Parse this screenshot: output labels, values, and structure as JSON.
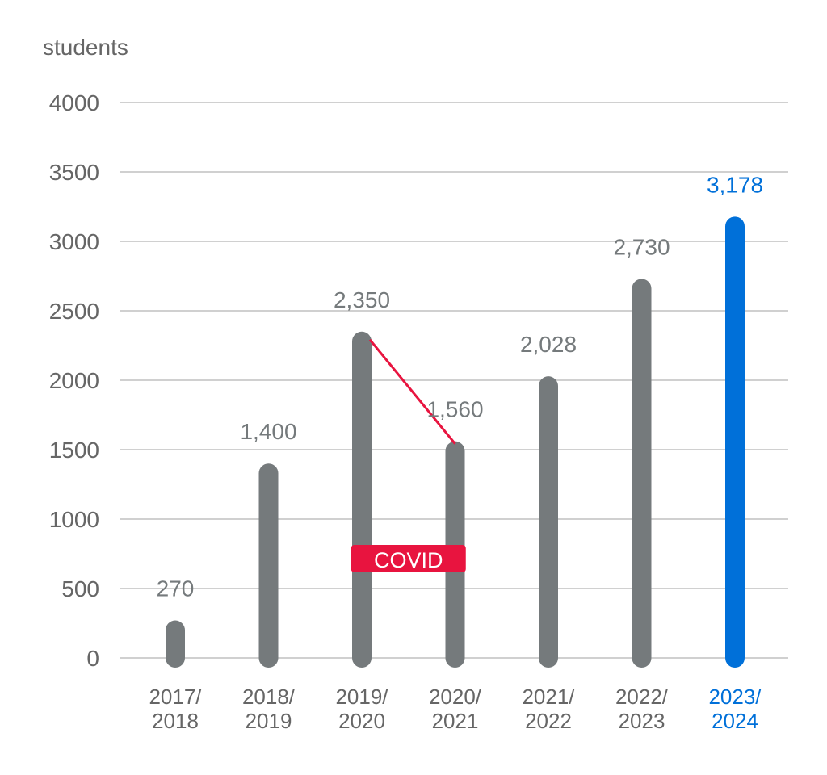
{
  "chart_data": {
    "type": "bar",
    "ylabel": "students",
    "ylim": [
      0,
      4000
    ],
    "yticks": [
      0,
      500,
      1000,
      1500,
      2000,
      2500,
      3000,
      3500,
      4000
    ],
    "ytick_labels": [
      "0",
      "500",
      "1000",
      "1500",
      "2000",
      "2500",
      "3000",
      "3500",
      "4000"
    ],
    "categories": [
      [
        "2017/",
        "2018"
      ],
      [
        "2018/",
        "2019"
      ],
      [
        "2019/",
        "2020"
      ],
      [
        "2020/",
        "2021"
      ],
      [
        "2021/",
        "2022"
      ],
      [
        "2022/",
        "2023"
      ],
      [
        "2023/",
        "2024"
      ]
    ],
    "values": [
      270,
      1400,
      2350,
      1560,
      2028,
      2730,
      3178
    ],
    "value_labels": [
      "270",
      "1,400",
      "2,350",
      "1,560",
      "2,028",
      "2,730",
      "3,178"
    ],
    "highlight_index": 6,
    "grid": true,
    "annotation": {
      "text": "COVID",
      "from_index": 2,
      "to_index": 3
    },
    "colors": {
      "bar": "#757a7c",
      "highlight": "#0070d9",
      "annotation": "#e8143f",
      "text": "#666666",
      "grid": "#b3b3b3"
    }
  }
}
